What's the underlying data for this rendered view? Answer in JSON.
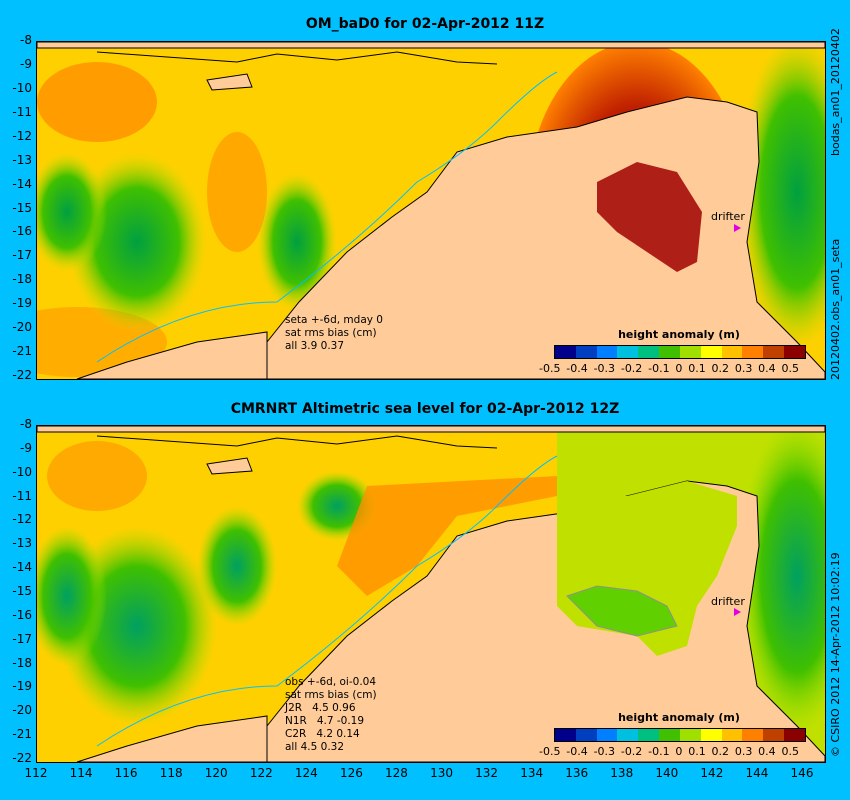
{
  "top_panel": {
    "title": "OM_baD0 for 02-Apr-2012 11Z",
    "annotation": [
      "seta +-6d, mday 0",
      "sat rms bias (cm)",
      "all 3.9 0.37"
    ],
    "drifter_label": "drifter",
    "colorbar_title": "height anomaly (m)",
    "side_text": "20120402.obs_an01_seta",
    "side_text_top": "bodas_an01_20120402"
  },
  "bottom_panel": {
    "title": "CMRNRT Altimetric sea level  for 02-Apr-2012 12Z",
    "annotation": [
      "obs +-6d, oi-0.04",
      "sat rms bias (cm)",
      "J2R   4.5 0.96",
      "N1R   4.7 -0.19",
      "C2R   4.2 0.14",
      "all 4.5 0.32"
    ],
    "drifter_label": "drifter",
    "colorbar_title": "height anomaly (m)",
    "side_text": "© CSIRO 2012  14-Apr-2012 10:02:19"
  },
  "y_ticks": [
    "-8",
    "-9",
    "-10",
    "-11",
    "-12",
    "-13",
    "-14",
    "-15",
    "-16",
    "-17",
    "-18",
    "-19",
    "-20",
    "-21",
    "-22"
  ],
  "x_ticks": [
    "112",
    "114",
    "116",
    "118",
    "120",
    "122",
    "124",
    "126",
    "128",
    "130",
    "132",
    "134",
    "136",
    "138",
    "140",
    "142",
    "144",
    "146"
  ],
  "colorbar_ticks": [
    "-0.5",
    "-0.4",
    "-0.3",
    "-0.2",
    "-0.1",
    "0",
    "0.1",
    "0.2",
    "0.3",
    "0.4",
    "0.5"
  ],
  "colorbar_colors": [
    "#00008b",
    "#0040c0",
    "#0080ff",
    "#00c0e0",
    "#00c080",
    "#40c000",
    "#a0e000",
    "#ffff00",
    "#ffc000",
    "#ff8000",
    "#c04000",
    "#8b0000"
  ],
  "colors": {
    "background": "#00c0ff",
    "land": "#ffcc99",
    "drifter_marker": "#e000e0"
  }
}
